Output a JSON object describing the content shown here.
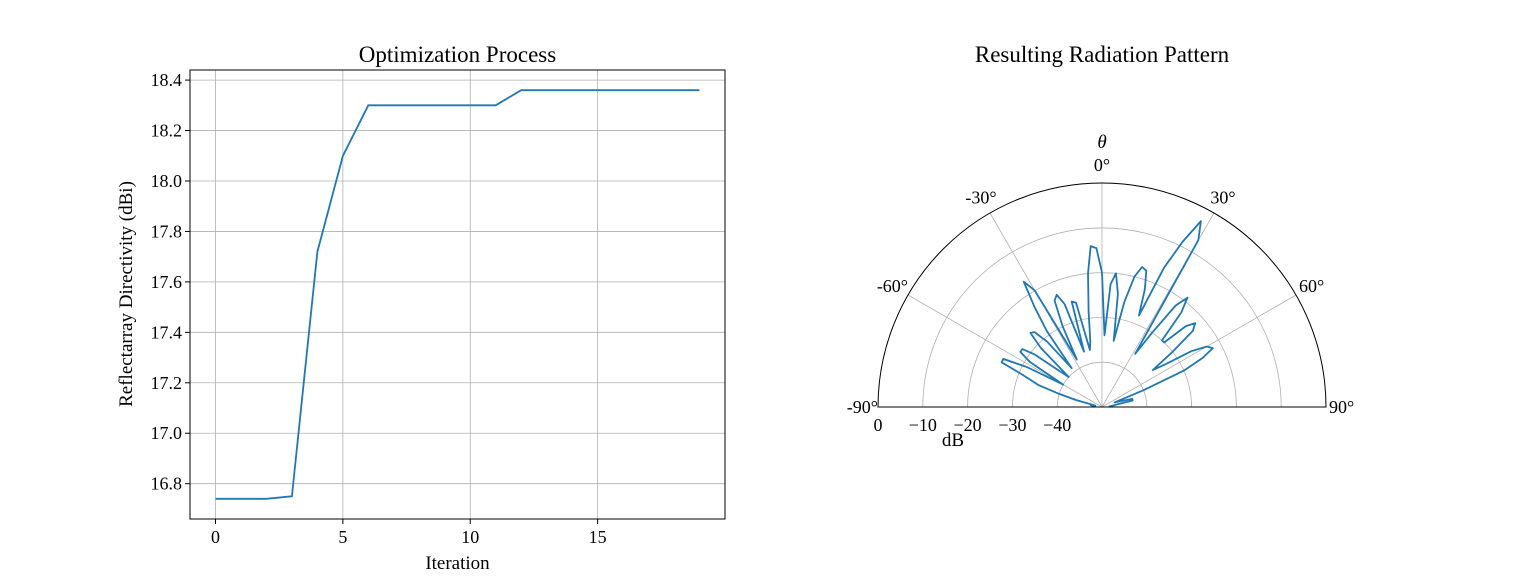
{
  "chart_data": [
    {
      "type": "line",
      "title": "Optimization Process",
      "xlabel": "Iteration",
      "ylabel": "Reflectarray Directivity (dBi)",
      "xlim": [
        -1,
        20
      ],
      "ylim": [
        16.66,
        18.44
      ],
      "x_ticks": [
        0,
        5,
        10,
        15
      ],
      "y_ticks": [
        16.8,
        17.0,
        17.2,
        17.4,
        17.6,
        17.8,
        18.0,
        18.2,
        18.4
      ],
      "x_tick_labels": [
        "0",
        "5",
        "10",
        "15"
      ],
      "y_tick_labels": [
        "16.8",
        "17.0",
        "17.2",
        "17.4",
        "17.6",
        "17.8",
        "18.0",
        "18.2",
        "18.4"
      ],
      "grid": true,
      "color": "#1f77b4",
      "series": [
        {
          "x": [
            0,
            1,
            2,
            3,
            4,
            5,
            6,
            7,
            8,
            9,
            10,
            11,
            12,
            13,
            14,
            15,
            16,
            17,
            18,
            19
          ],
          "values": [
            16.74,
            16.74,
            16.74,
            16.75,
            17.72,
            18.1,
            18.3,
            18.3,
            18.3,
            18.3,
            18.3,
            18.3,
            18.36,
            18.36,
            18.36,
            18.36,
            18.36,
            18.36,
            18.36,
            18.36
          ]
        }
      ]
    },
    {
      "type": "polar-line",
      "title": "Resulting Radiation Pattern",
      "theta_label": "θ",
      "radial_label": "dB",
      "theta_range_deg": [
        -90,
        90
      ],
      "theta_zero": "top",
      "radial_range": [
        0,
        -50
      ],
      "theta_ticks_deg": [
        -90,
        -60,
        -30,
        0,
        30,
        60,
        90
      ],
      "theta_tick_labels": [
        "-90°",
        "-60°",
        "-30°",
        "0°",
        "30°",
        "60°",
        "90°"
      ],
      "radial_ticks": [
        0,
        -10,
        -20,
        -30,
        -40
      ],
      "radial_tick_labels": [
        "0",
        "−10",
        "−20",
        "−30",
        "−40"
      ],
      "grid": true,
      "color": "#1f77b4",
      "series": [
        {
          "theta_deg": [
            -85,
            -81,
            -78,
            -75,
            -73,
            -71,
            -68,
            -66,
            -64,
            -62,
            -60,
            -58,
            -56,
            -54,
            -52,
            -50,
            -48,
            -46,
            -44,
            -42,
            -40,
            -38,
            -36,
            -34,
            -32,
            -30,
            -28,
            -26,
            -24,
            -22,
            -20,
            -18,
            -16,
            -14,
            -12,
            -10,
            -8,
            -6,
            -4,
            -2,
            0,
            2,
            4,
            6,
            8,
            10,
            12,
            14,
            16,
            18,
            20,
            22,
            24,
            26,
            28,
            30,
            32,
            34,
            36,
            38,
            40,
            42,
            44,
            46,
            48,
            50,
            52,
            54,
            56,
            58,
            60,
            62,
            64,
            66,
            68,
            70,
            72,
            75,
            78,
            81,
            84,
            87
          ],
          "values": [
            -48.5,
            -47.5,
            -48.5,
            -44,
            -40,
            -35,
            -31,
            -25.5,
            -25.5,
            -31,
            -40,
            -31,
            -28,
            -28,
            -31,
            -37,
            -40,
            -31,
            -27,
            -27.5,
            -31,
            -39,
            -29,
            -23,
            -17,
            -20,
            -38,
            -30,
            -24,
            -23,
            -25.5,
            -37,
            -25.5,
            -26,
            -37,
            -35,
            -28.5,
            -20,
            -14,
            -14.5,
            -20,
            -34,
            -22.5,
            -20,
            -24.5,
            -35,
            -26,
            -20,
            -17.5,
            -18,
            -22,
            -28,
            -16,
            -9,
            -3,
            -7,
            -36,
            -30,
            -22,
            -19,
            -22.5,
            -30,
            -30,
            -24,
            -22,
            -23.5,
            -30,
            -36,
            -33,
            -26.5,
            -23,
            -22,
            -25,
            -30,
            -40,
            -47,
            -46,
            -43,
            -43,
            -47,
            -48,
            -48.5
          ]
        }
      ]
    }
  ]
}
